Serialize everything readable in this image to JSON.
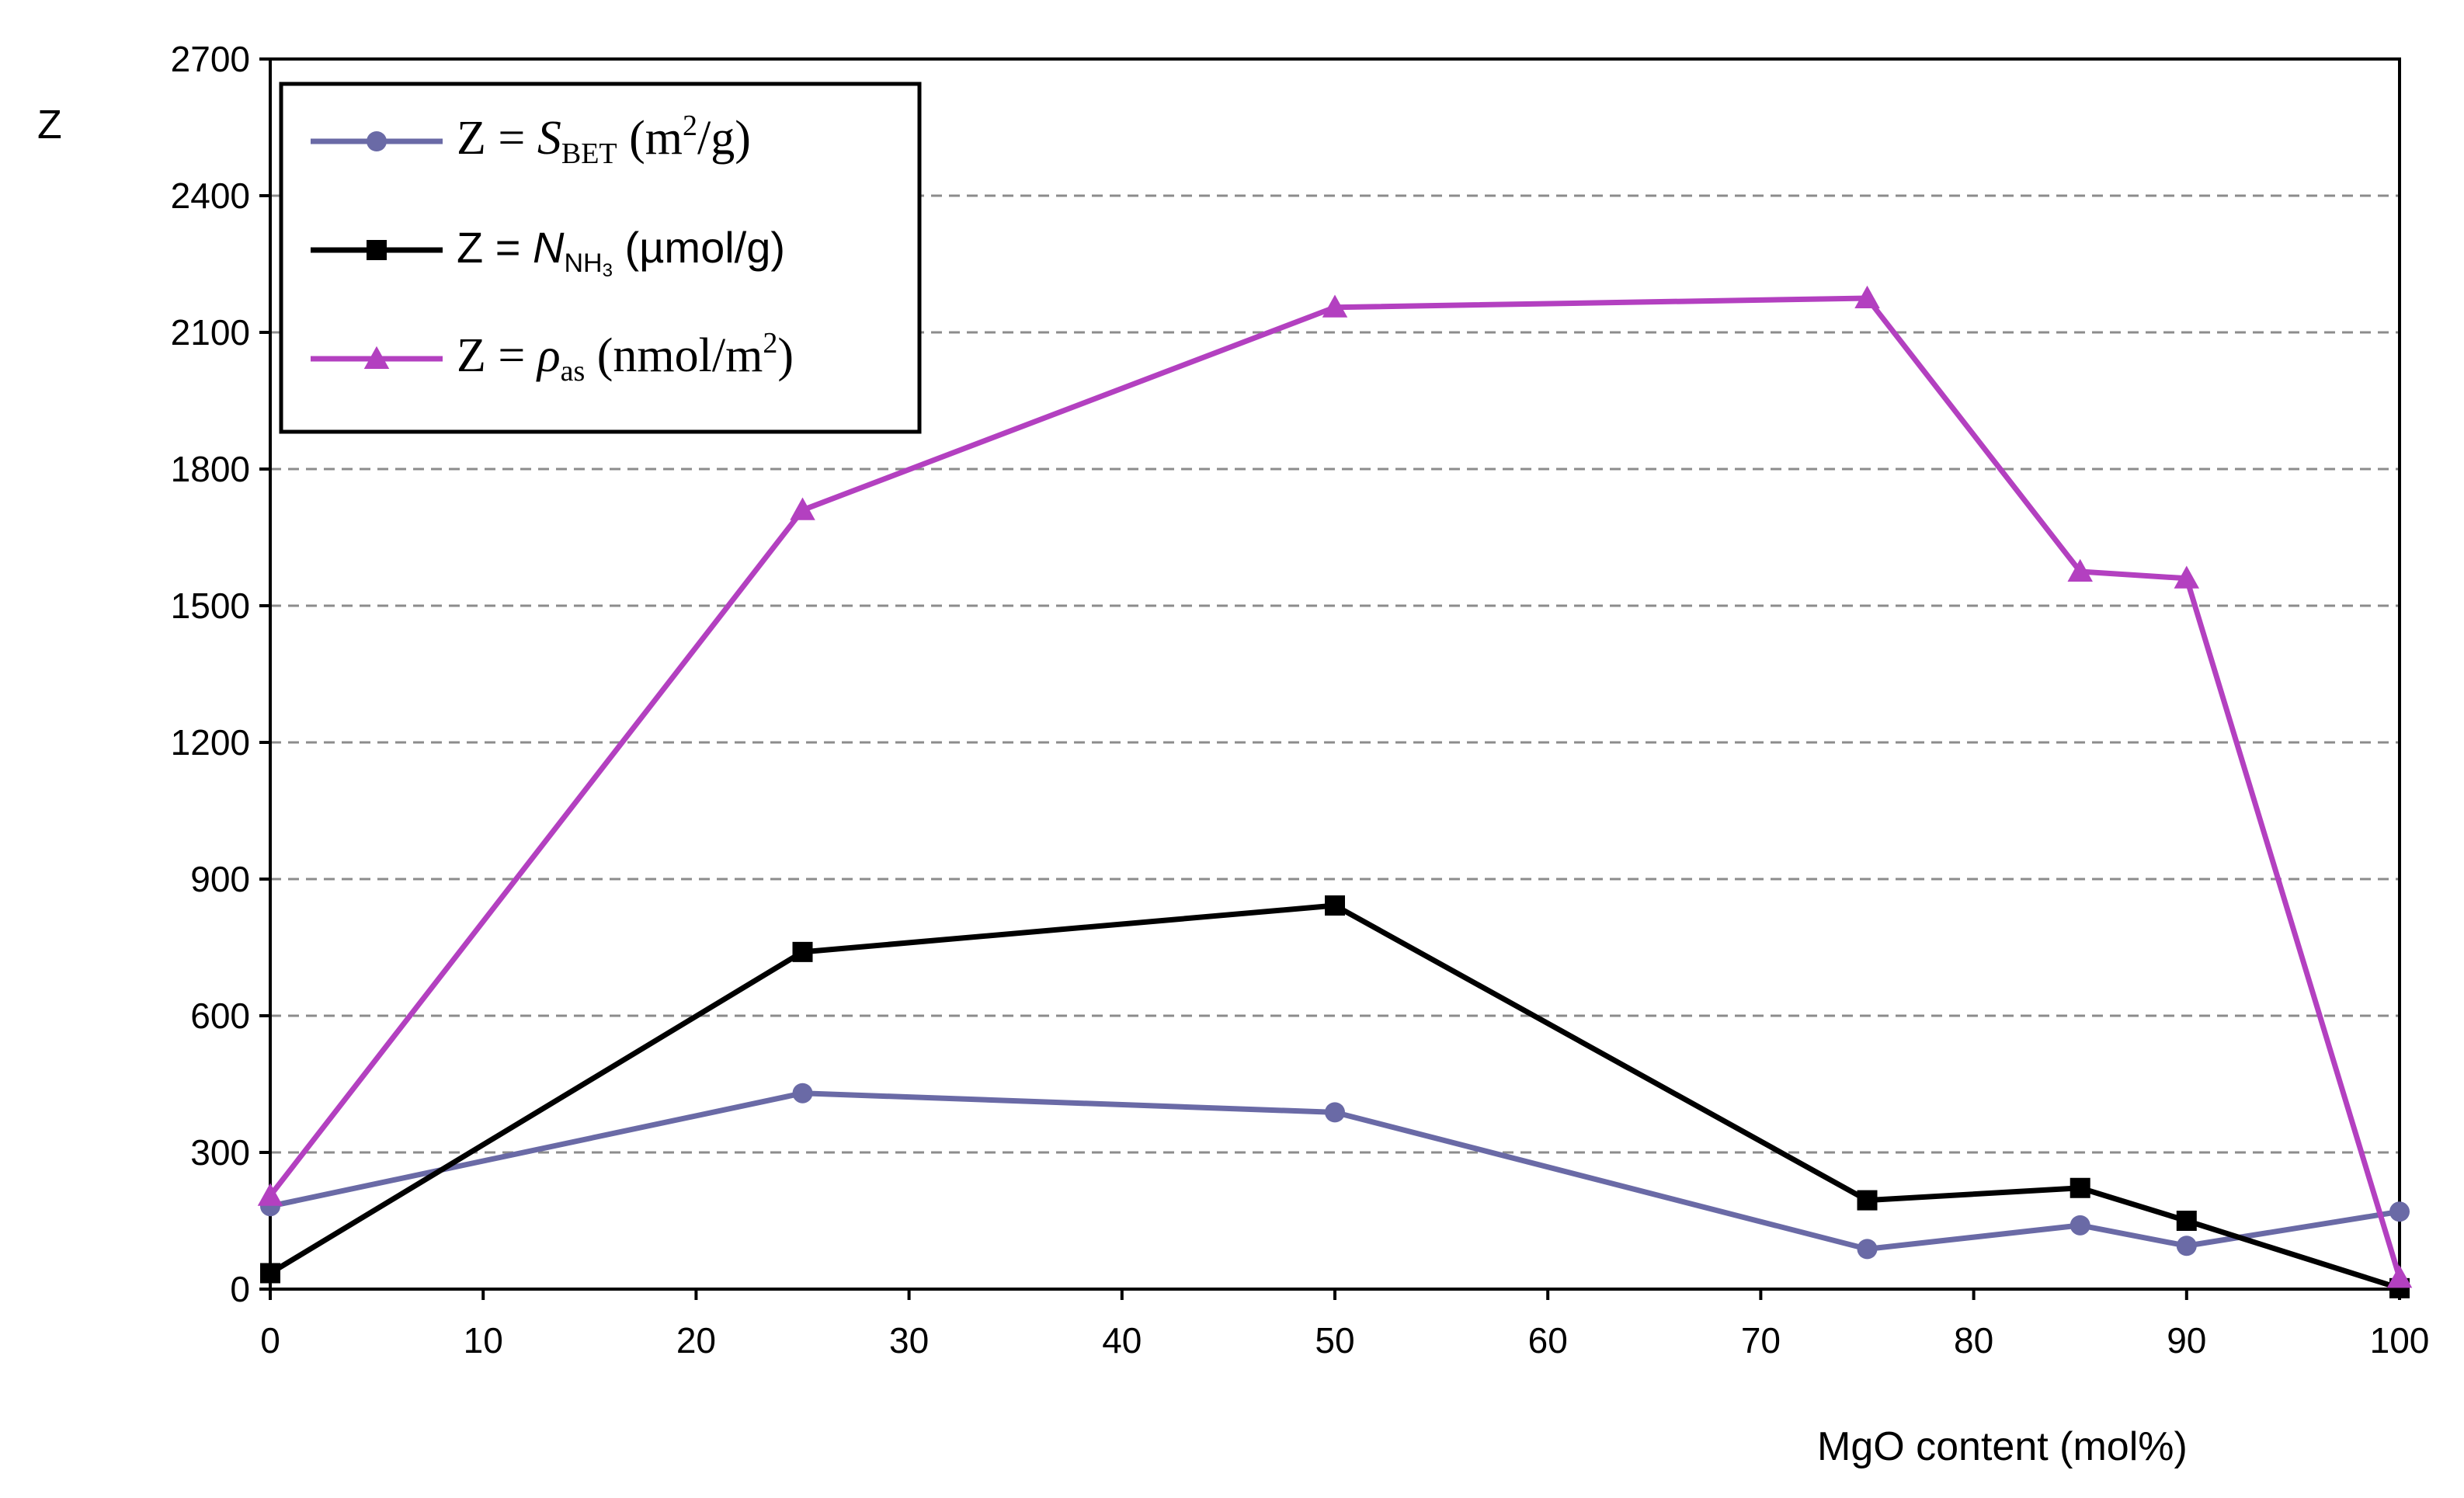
{
  "chart_data": {
    "type": "line",
    "title": "",
    "xlabel": "MgO content  (mol%)",
    "ylabel": "Z",
    "xlim": [
      0,
      100
    ],
    "ylim": [
      0,
      2700
    ],
    "xticks": [
      0,
      10,
      20,
      30,
      40,
      50,
      60,
      70,
      80,
      90,
      100
    ],
    "yticks": [
      0,
      300,
      600,
      900,
      1200,
      1500,
      1800,
      2100,
      2400,
      2700
    ],
    "grid": "horizontal dashed",
    "legend_position": "top-left",
    "x": [
      0,
      25,
      50,
      75,
      85,
      90,
      100
    ],
    "series": [
      {
        "name": "Z = S_BET (m2/g)",
        "legend": {
          "prefix": "Z = ",
          "var": "S",
          "sub": "BET",
          "unit_pre": " (m",
          "sup": "2",
          "unit_post": "/g)"
        },
        "color": "#6a6aa6",
        "marker": "circle",
        "values": [
          182,
          430,
          388,
          88,
          140,
          95,
          170
        ]
      },
      {
        "name": "Z = N_NH3 (µmol/g)",
        "legend": {
          "prefix": "Z = ",
          "var": "N",
          "sub": "NH",
          "subsub": "3",
          "unit_pre": " (µmol/g)",
          "sup": "",
          "unit_post": ""
        },
        "color": "#000000",
        "marker": "square",
        "values": [
          35,
          740,
          842,
          195,
          222,
          150,
          2
        ]
      },
      {
        "name": "Z = ρ_as (nmol/m2)",
        "legend": {
          "prefix": "Z = ",
          "var": "ρ",
          "sub": "as",
          "unit_pre": " (nmol/m",
          "sup": "2",
          "unit_post": ")"
        },
        "color": "#b340c0",
        "marker": "triangle",
        "values": [
          205,
          1710,
          2155,
          2175,
          1575,
          1560,
          25
        ]
      }
    ]
  }
}
